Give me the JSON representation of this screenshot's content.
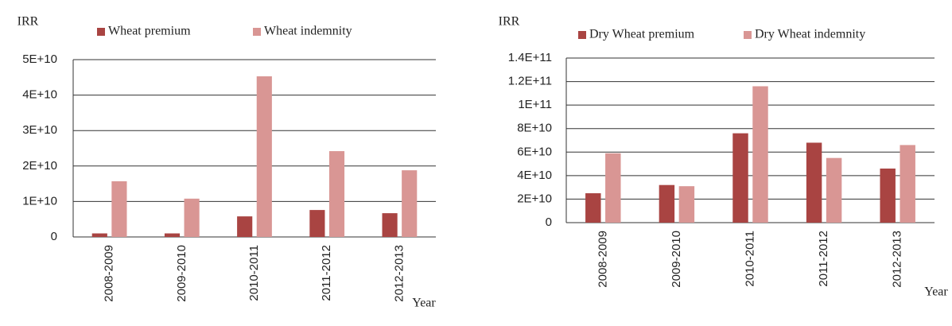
{
  "chart_data": [
    {
      "type": "bar",
      "y_label": "IRR",
      "x_label": "Year",
      "categories": [
        "2008-2009",
        "2009-2010",
        "2010-2011",
        "2011-2012",
        "2012-2013"
      ],
      "series": [
        {
          "name": "Wheat premium",
          "color": "#a94442",
          "values": [
            1000000000,
            1000000000,
            5800000000,
            7600000000,
            6700000000
          ]
        },
        {
          "name": "Wheat indemnity",
          "color": "#d99694",
          "values": [
            15700000000,
            10800000000,
            45300000000,
            24200000000,
            18800000000
          ]
        }
      ],
      "ylim": [
        0,
        50000000000
      ],
      "yticks": [
        0,
        {
          "value": 10000000000,
          "label": "1E+10"
        },
        {
          "value": 20000000000,
          "label": "2E+10"
        },
        {
          "value": 30000000000,
          "label": "3E+10"
        },
        {
          "value": 40000000000,
          "label": "4E+10"
        },
        {
          "value": 50000000000,
          "label": "5E+10"
        }
      ],
      "grid": true,
      "legend": "top"
    },
    {
      "type": "bar",
      "y_label": "IRR",
      "x_label": "Year",
      "categories": [
        "2008-2009",
        "2009-2010",
        "2010-2011",
        "2011-2012",
        "2012-2013"
      ],
      "series": [
        {
          "name": "Dry Wheat premium",
          "color": "#a94442",
          "values": [
            25000000000,
            32000000000,
            76000000000,
            68000000000,
            46000000000
          ]
        },
        {
          "name": "Dry Wheat indemnity",
          "color": "#d99694",
          "values": [
            59000000000,
            31000000000,
            116000000000,
            55000000000,
            66000000000
          ]
        }
      ],
      "ylim": [
        0,
        140000000000
      ],
      "yticks": [
        0,
        {
          "value": 20000000000,
          "label": "2E+10"
        },
        {
          "value": 40000000000,
          "label": "4E+10"
        },
        {
          "value": 60000000000,
          "label": "6E+10"
        },
        {
          "value": 80000000000,
          "label": "8E+10"
        },
        {
          "value": 100000000000,
          "label": "1E+11"
        },
        {
          "value": 120000000000,
          "label": "1.2E+11"
        },
        {
          "value": 140000000000,
          "label": "1.4E+11"
        }
      ],
      "grid": true,
      "legend": "top"
    }
  ]
}
